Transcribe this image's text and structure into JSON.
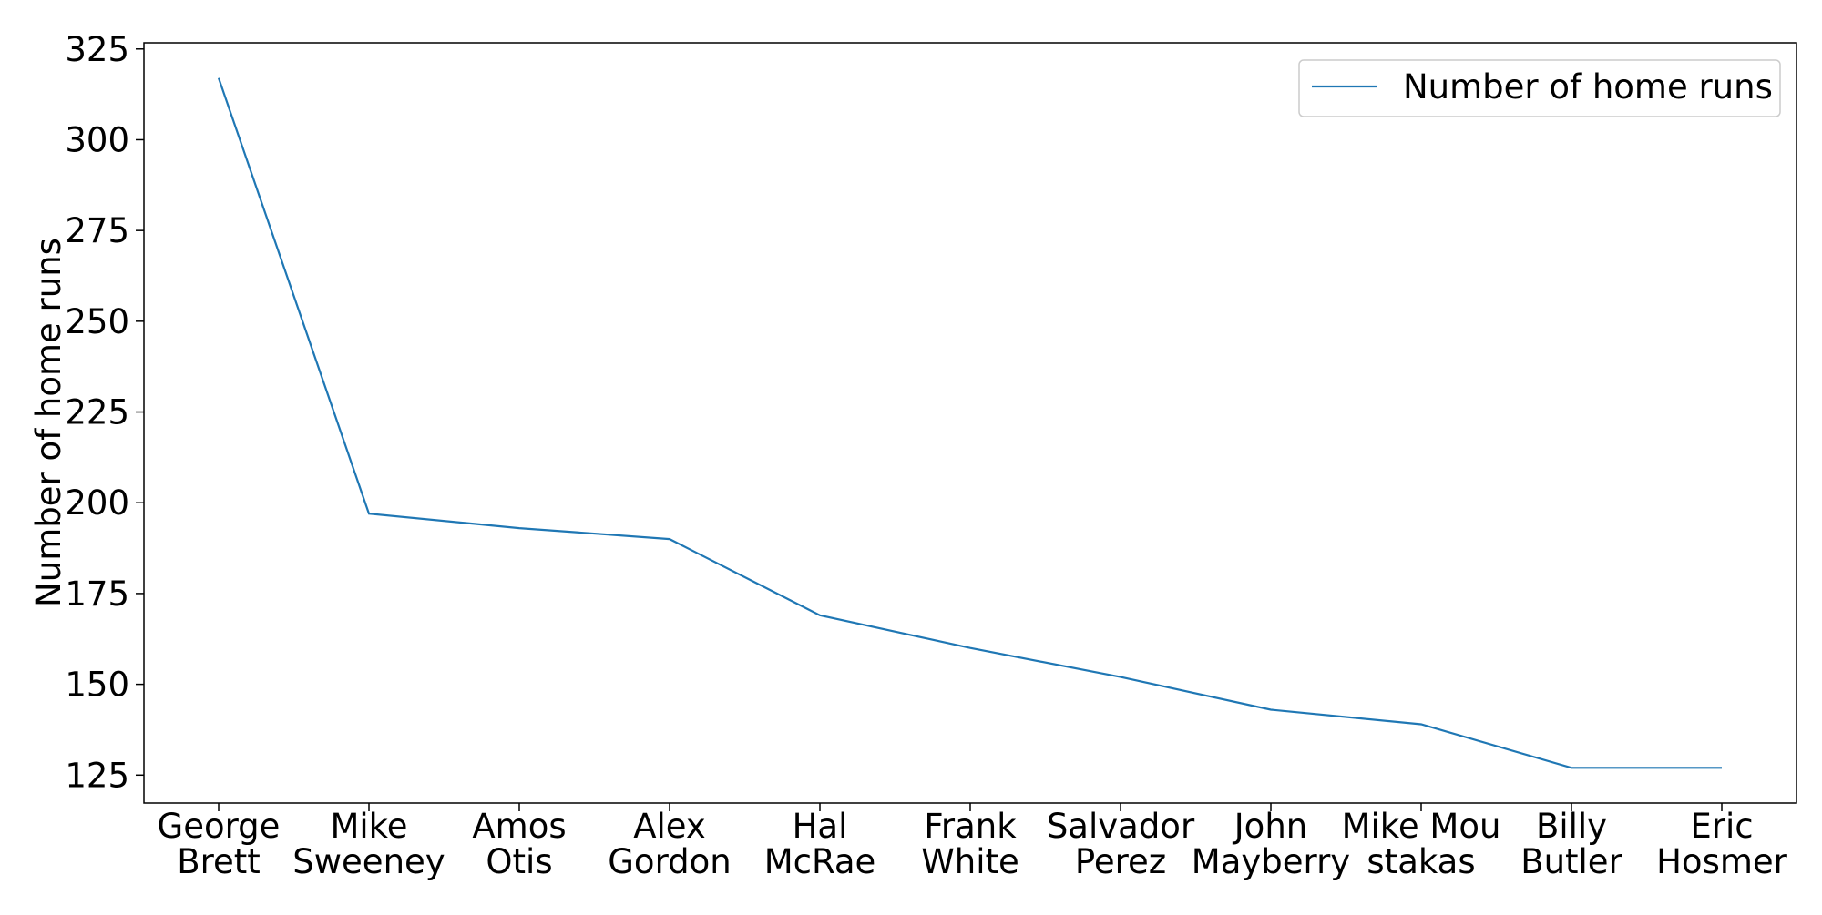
{
  "chart_data": {
    "type": "line",
    "categories": [
      [
        "George",
        "Brett"
      ],
      [
        "Mike",
        "Sweeney"
      ],
      [
        "Amos",
        "Otis"
      ],
      [
        "Alex",
        "Gordon"
      ],
      [
        "Hal",
        "McRae"
      ],
      [
        "Frank",
        "White"
      ],
      [
        "Salvador",
        "Perez"
      ],
      [
        "John",
        "Mayberry"
      ],
      [
        "Mike Mou",
        "stakas"
      ],
      [
        "Billy",
        "Butler"
      ],
      [
        "Eric",
        "Hosmer"
      ]
    ],
    "series": [
      {
        "name": "Number of home runs",
        "values": [
          317,
          197,
          193,
          190,
          169,
          160,
          152,
          143,
          139,
          127,
          127
        ],
        "color": "#1f77b4"
      }
    ],
    "xlabel": "",
    "ylabel": "Number of home runs",
    "ylim": [
      117.3,
      326.7
    ],
    "yticks": [
      125,
      150,
      175,
      200,
      225,
      250,
      275,
      300,
      325
    ],
    "grid": false,
    "legend_position": "top-right"
  }
}
